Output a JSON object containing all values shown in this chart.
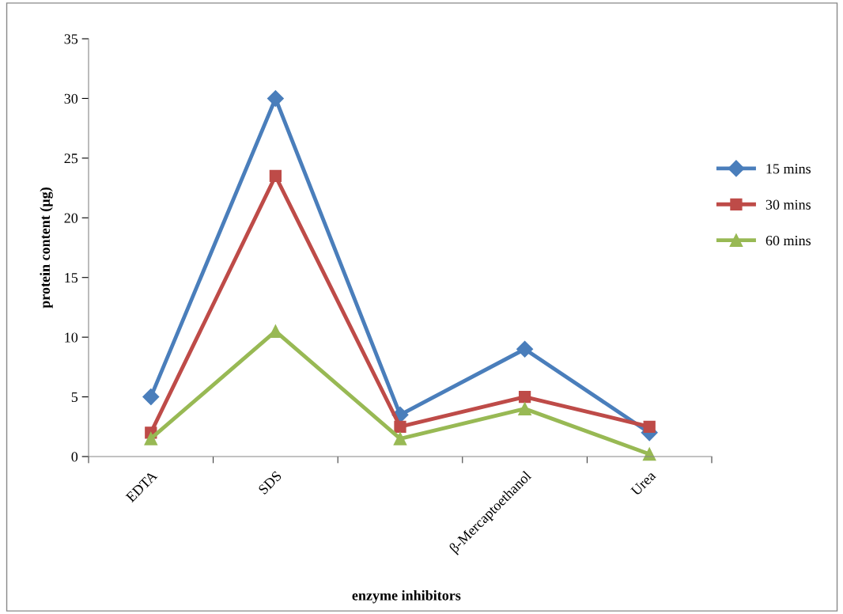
{
  "chart_data": {
    "type": "line",
    "xlabel": "enzyme inhibitors",
    "ylabel": "protein content (µg)",
    "categories": [
      "EDTA",
      "SDS",
      null,
      "β-Mercaptoethanol",
      "Urea"
    ],
    "ylim": [
      0,
      35
    ],
    "yticks": [
      0,
      5,
      10,
      15,
      20,
      25,
      30,
      35
    ],
    "grid": false,
    "legend": "right",
    "line_style": "solid",
    "series": [
      {
        "name": "15 mins",
        "color": "#4a7ebb",
        "marker": "diamond",
        "values": [
          5,
          30,
          3.5,
          9,
          2
        ]
      },
      {
        "name": "30 mins",
        "color": "#be4b48",
        "marker": "square",
        "values": [
          2,
          23.5,
          2.5,
          5,
          2.5
        ]
      },
      {
        "name": "60 mins",
        "color": "#98b954",
        "marker": "triangle",
        "values": [
          1.5,
          10.5,
          1.5,
          4,
          0.2
        ]
      }
    ]
  }
}
